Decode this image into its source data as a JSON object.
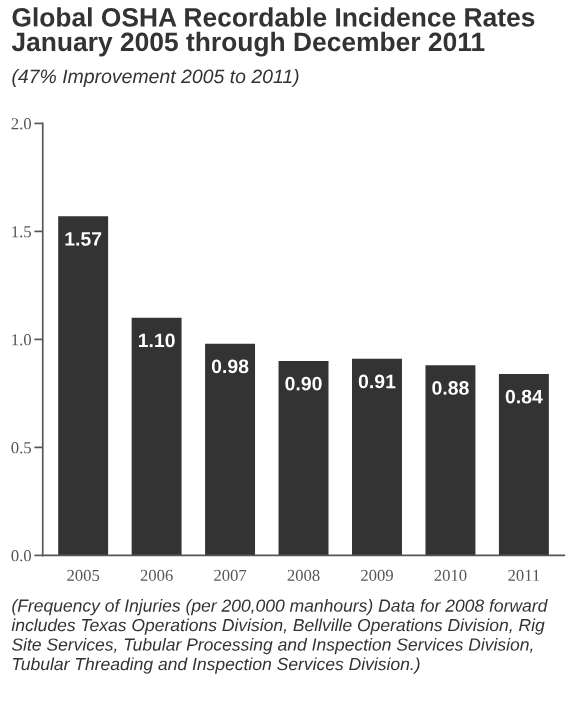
{
  "chart_data": {
    "type": "bar",
    "title": "Global OSHA Recordable Incidence Rates\nJanuary 2005 through December 2011",
    "subtitle": "(47% Improvement 2005 to 2011)",
    "categories": [
      "2005",
      "2006",
      "2007",
      "2008",
      "2009",
      "2010",
      "2011"
    ],
    "values": [
      1.57,
      1.1,
      0.98,
      0.9,
      0.91,
      0.88,
      0.84
    ],
    "value_labels": [
      "1.57",
      "1.10",
      "0.98",
      "0.90",
      "0.91",
      "0.88",
      "0.84"
    ],
    "color": "#333333",
    "ylim": [
      0,
      2.0
    ],
    "yticks": [
      {
        "value": 0,
        "label": "0.0"
      },
      {
        "value": 0.5,
        "label": "0.5"
      },
      {
        "value": 1.0,
        "label": "1.0"
      },
      {
        "value": 1.5,
        "label": "1.5"
      },
      {
        "value": 2.0,
        "label": "2.0"
      }
    ],
    "grid": false,
    "legend": false,
    "annotations": [
      "(Frequency of Injuries (per 200,000 manhours) Data for 2008 forward includes Texas Operations Division, Bellville Operations Division, Rig Site Services, Tubular Processing and Inspection Services Division, Tubular Threading and Inspection Services Division.)"
    ]
  }
}
